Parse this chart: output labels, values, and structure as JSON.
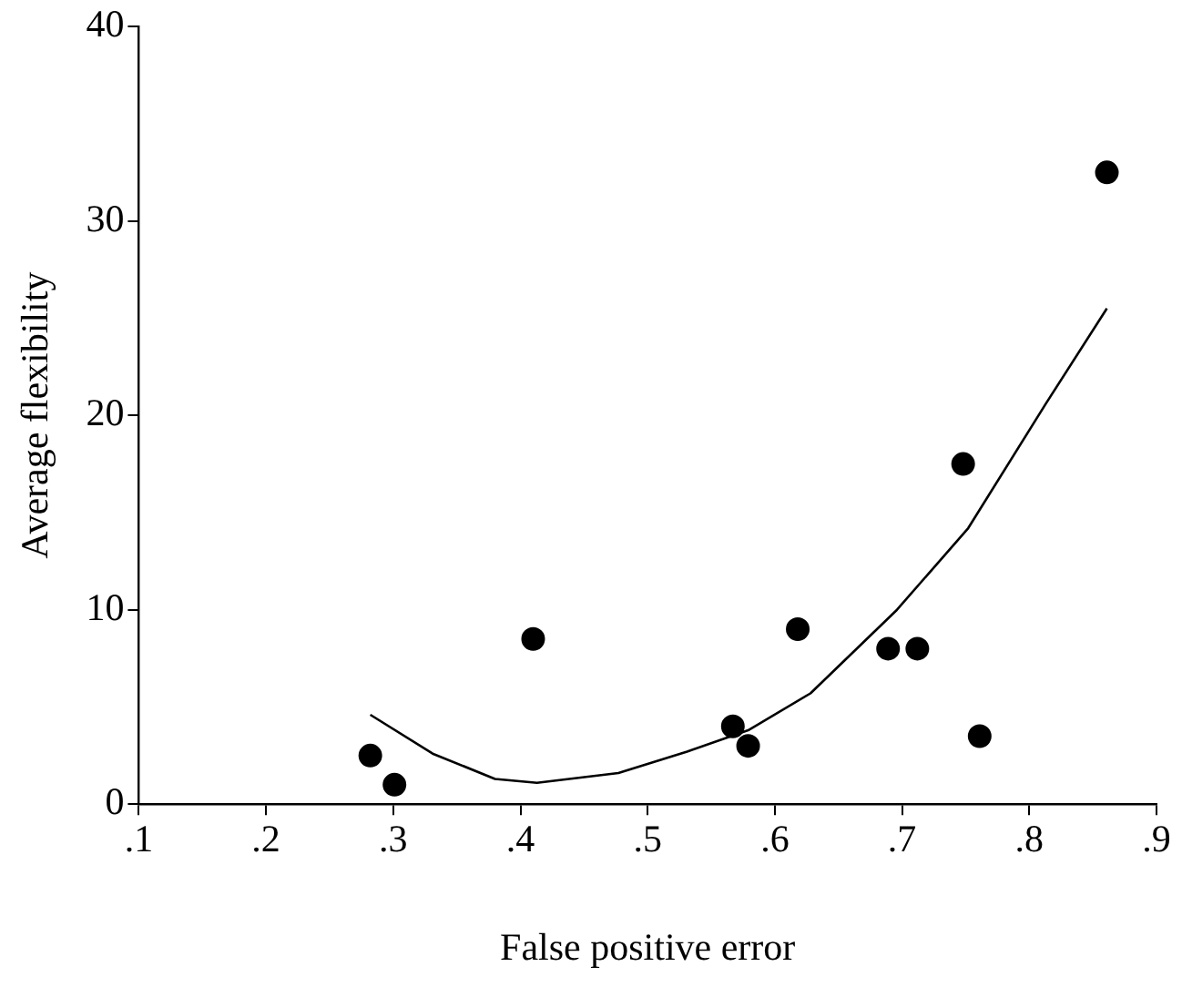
{
  "chart_data": {
    "type": "scatter",
    "xlabel": "False positive error",
    "ylabel": "Average flexibility",
    "xlim": [
      0.1,
      0.9
    ],
    "xticks": [
      {
        "value": 0.1,
        "label": ".1"
      },
      {
        "value": 0.2,
        "label": ".2"
      },
      {
        "value": 0.3,
        "label": ".3"
      },
      {
        "value": 0.4,
        "label": ".4"
      },
      {
        "value": 0.5,
        "label": ".5"
      },
      {
        "value": 0.6,
        "label": ".6"
      },
      {
        "value": 0.7,
        "label": ".7"
      },
      {
        "value": 0.8,
        "label": ".8"
      },
      {
        "value": 0.9,
        "label": ".9"
      }
    ],
    "ylim": [
      0,
      40
    ],
    "yticks": [
      0,
      10,
      20,
      30,
      40
    ],
    "series": [
      {
        "type": "scatter",
        "color": "#000000",
        "marker": "circle",
        "x": [
          0.282,
          0.301,
          0.41,
          0.567,
          0.579,
          0.618,
          0.689,
          0.712,
          0.748,
          0.761,
          0.861
        ],
        "values": [
          2.5,
          1.0,
          8.5,
          4.0,
          3.0,
          9.0,
          8.0,
          8.0,
          17.5,
          3.5,
          32.5
        ]
      },
      {
        "type": "line",
        "color": "#000000",
        "marker": "none",
        "line_style": "solid",
        "x": [
          0.282,
          0.331,
          0.38,
          0.413,
          0.477,
          0.531,
          0.579,
          0.628,
          0.696,
          0.752,
          0.813,
          0.861
        ],
        "values": [
          4.6,
          2.6,
          1.3,
          1.1,
          1.6,
          2.7,
          3.8,
          5.7,
          10.0,
          14.2,
          20.6,
          25.5
        ]
      }
    ]
  }
}
